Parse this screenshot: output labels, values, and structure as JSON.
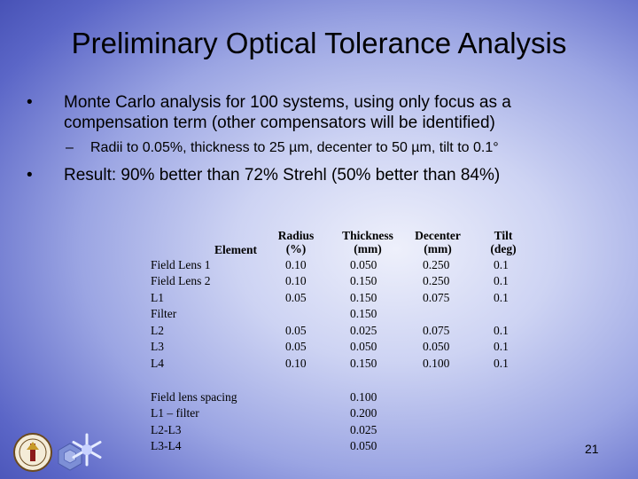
{
  "slide": {
    "title": "Preliminary Optical Tolerance Analysis",
    "bullets": [
      {
        "marker": "•",
        "text": "Monte Carlo analysis for 100 systems, using only focus as a compensation term (other compensators will be identified)"
      },
      {
        "marker": "•",
        "text": "Result: 90% better than 72% Strehl (50% better than 84%)"
      }
    ],
    "sub_bullet": {
      "marker": "–",
      "text": "Radii to 0.05%, thickness to 25 µm, decenter to 50 µm, tilt to 0.1°"
    },
    "page_number": "21"
  },
  "table": {
    "headers": {
      "element": "Element",
      "radius": [
        "Radius",
        "(%)"
      ],
      "thickness": [
        "Thickness",
        "(mm)"
      ],
      "decenter": [
        "Decenter",
        "(mm)"
      ],
      "tilt": [
        "Tilt",
        "(deg)"
      ]
    },
    "rows": [
      [
        "Field Lens 1",
        "0.10",
        "0.050",
        "0.250",
        "0.1"
      ],
      [
        "Field Lens 2",
        "0.10",
        "0.150",
        "0.250",
        "0.1"
      ],
      [
        "L1",
        "0.05",
        "0.150",
        "0.075",
        "0.1"
      ],
      [
        "Filter",
        "",
        "0.150",
        "",
        ""
      ],
      [
        "L2",
        "0.05",
        "0.025",
        "0.075",
        "0.1"
      ],
      [
        "L3",
        "0.05",
        "0.050",
        "0.050",
        "0.1"
      ],
      [
        "L4",
        "0.10",
        "0.150",
        "0.100",
        "0.1"
      ]
    ],
    "spacing_rows": [
      [
        "Field lens spacing",
        "0.100"
      ],
      [
        "L1 – filter",
        "0.200"
      ],
      [
        "L2-L3",
        "0.025"
      ],
      [
        "L3-L4",
        "0.050"
      ]
    ]
  },
  "colors": {
    "background_center": "#eef0fb",
    "background_edge": "#3b45ab"
  }
}
